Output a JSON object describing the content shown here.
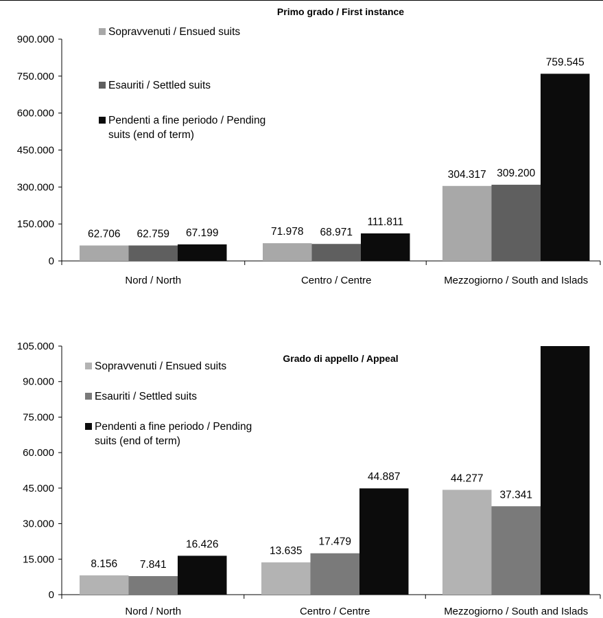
{
  "chart_data": [
    {
      "type": "bar",
      "title": "Primo grado / First instance",
      "categories": [
        "Nord / North",
        "Centro / Centre",
        "Mezzogiorno / South and Islads"
      ],
      "series": [
        {
          "name": "Sopravvenuti / Ensued suits",
          "values": [
            62706,
            71978,
            304317
          ],
          "labels": [
            "62.706",
            "71.978",
            "304.317"
          ],
          "color": "#a8a8a8"
        },
        {
          "name": "Esauriti / Settled suits",
          "values": [
            62759,
            68971,
            309200
          ],
          "labels": [
            "62.759",
            "68.971",
            "309.200"
          ],
          "color": "#5f5f5f"
        },
        {
          "name": "Pendenti a fine periodo / Pending suits (end of term)",
          "name_lines": [
            "Pendenti a fine periodo / Pending",
            "suits (end of term)"
          ],
          "values": [
            67199,
            111811,
            759545
          ],
          "labels": [
            "67.199",
            "111.811",
            "759.545"
          ],
          "color": "#0c0c0c"
        }
      ],
      "yticks": [
        0,
        150000,
        300000,
        450000,
        600000,
        750000,
        900000
      ],
      "ytick_labels": [
        "0",
        "150.000",
        "300.000",
        "450.000",
        "600.000",
        "750.000",
        "900.000"
      ],
      "ylim": [
        0,
        900000
      ],
      "legend": "upper-left, inside plot"
    },
    {
      "type": "bar",
      "title": "Grado di appello / Appeal",
      "categories": [
        "Nord / North",
        "Centro / Centre",
        "Mezzogiorno / South and Islads"
      ],
      "series": [
        {
          "name": "Sopravvenuti / Ensued suits",
          "values": [
            8156,
            13635,
            44277
          ],
          "labels": [
            "8.156",
            "13.635",
            "44.277"
          ],
          "color": "#b3b3b3"
        },
        {
          "name": "Esauriti / Settled suits",
          "values": [
            7841,
            17479,
            37341
          ],
          "labels": [
            "7.841",
            "17.479",
            "37.341"
          ],
          "color": "#7a7a7a"
        },
        {
          "name": "Pendenti a fine periodo / Pending suits (end of term)",
          "name_lines": [
            "Pendenti a fine periodo / Pending",
            "suits (end of term)"
          ],
          "values": [
            16426,
            44887,
            105000
          ],
          "labels": [
            "16.426",
            "44.887",
            ""
          ],
          "color": "#0c0c0c"
        }
      ],
      "yticks": [
        0,
        15000,
        30000,
        45000,
        60000,
        75000,
        90000,
        105000
      ],
      "ytick_labels": [
        "0",
        "15.000",
        "30.000",
        "45.000",
        "60.000",
        "75.000",
        "90.000",
        "105.000"
      ],
      "ylim": [
        0,
        105000
      ],
      "legend": "upper-left, inside plot"
    }
  ]
}
